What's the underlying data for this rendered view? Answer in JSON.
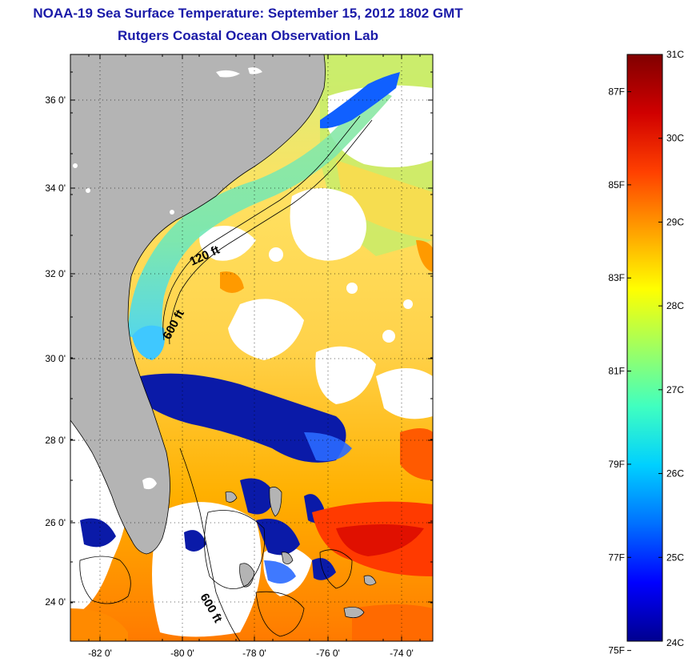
{
  "title": {
    "line1": "NOAA-19 Sea Surface Temperature:  September 15, 2012 1802 GMT",
    "line2": "Rutgers Coastal Ocean Observation Lab"
  },
  "map": {
    "lat_ticks": [
      "24 0'",
      "26 0'",
      "28 0'",
      "30 0'",
      "32 0'",
      "34 0'",
      "36 0'"
    ],
    "lon_ticks": [
      "-82 0'",
      "-80 0'",
      "-78 0'",
      "-76 0'",
      "-74 0'"
    ],
    "grid": true,
    "grid_style": "dotted",
    "contours": [
      {
        "label": "120 ft"
      },
      {
        "label": "600 ft"
      },
      {
        "label": "600 ft"
      }
    ],
    "colors": {
      "land": "#b4b4b4",
      "cloud": "#ffffff",
      "coastline": "#000000"
    }
  },
  "colorbar": {
    "celsius_labels": [
      "31C",
      "30C",
      "29C",
      "28C",
      "27C",
      "26C",
      "25C",
      "24C"
    ],
    "fahrenheit_labels": [
      "87F",
      "85F",
      "83F",
      "81F",
      "79F",
      "77F",
      "75F"
    ],
    "celsius_range": [
      24,
      31
    ],
    "colormap": [
      "#00008f",
      "#0000ff",
      "#0070ff",
      "#00d0ff",
      "#40ffc0",
      "#a0ff60",
      "#ffff00",
      "#ffa000",
      "#ff4000",
      "#d00000",
      "#800000"
    ]
  }
}
